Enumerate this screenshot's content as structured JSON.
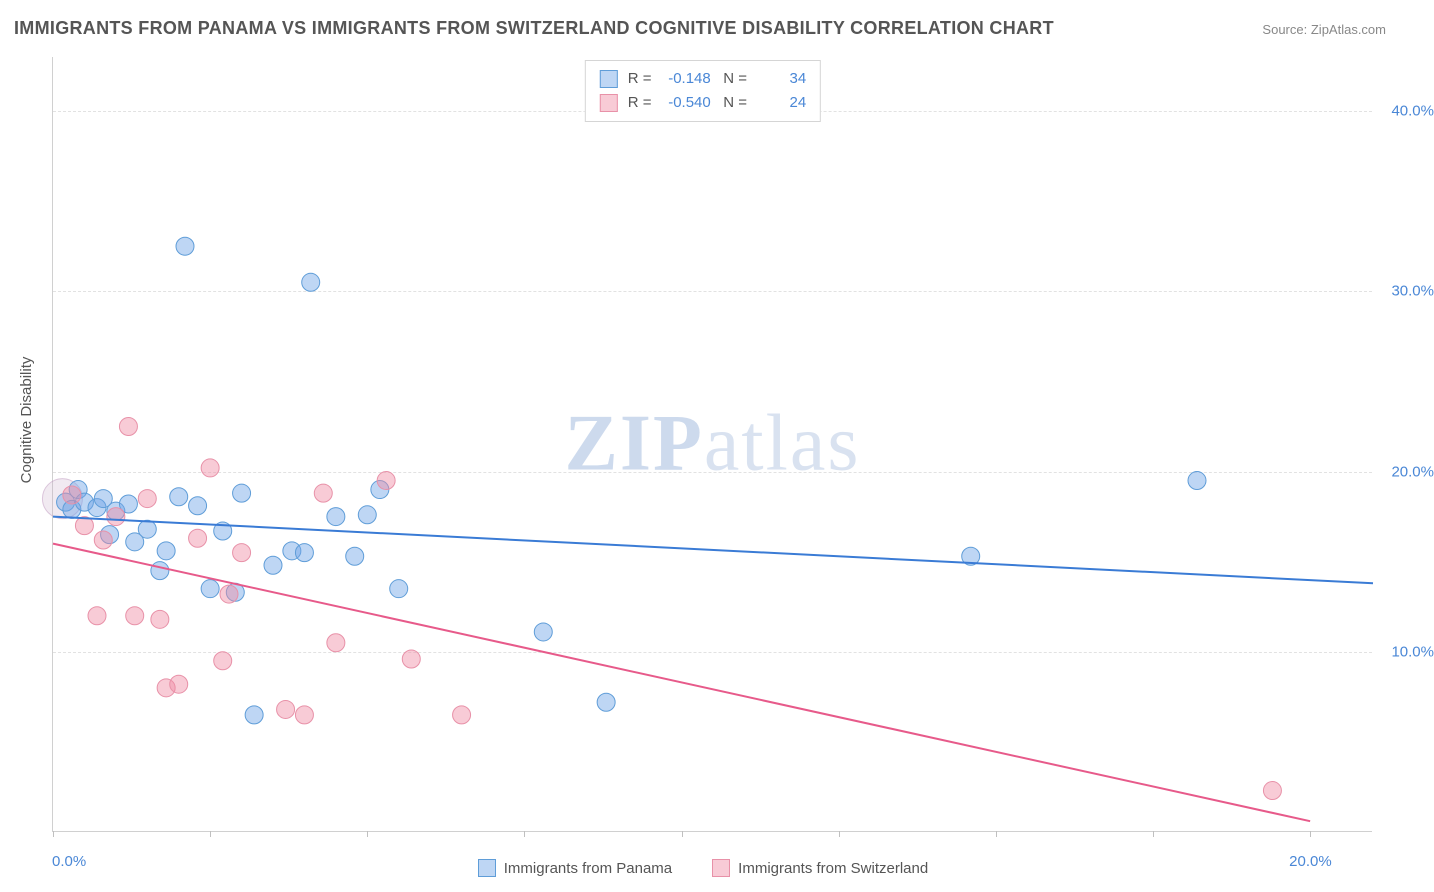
{
  "title": "IMMIGRANTS FROM PANAMA VS IMMIGRANTS FROM SWITZERLAND COGNITIVE DISABILITY CORRELATION CHART",
  "source_label": "Source:",
  "source_value": "ZipAtlas.com",
  "watermark": {
    "part1": "ZIP",
    "part2": "atlas"
  },
  "ylabel": "Cognitive Disability",
  "chart": {
    "type": "scatter",
    "background_color": "#ffffff",
    "grid_color": "#e2e2e2",
    "axis_color": "#d0d0d0",
    "tick_label_color": "#4a87d6",
    "label_color": "#555555",
    "xlim": [
      0,
      21
    ],
    "ylim": [
      0,
      43
    ],
    "y_ticks": [
      10,
      20,
      30,
      40
    ],
    "y_tick_labels": [
      "10.0%",
      "20.0%",
      "30.0%",
      "40.0%"
    ],
    "x_ticks": [
      0,
      2.5,
      5,
      7.5,
      10,
      12.5,
      15,
      17.5,
      20
    ],
    "x_tick_labels": {
      "0": "0.0%",
      "20": "20.0%"
    },
    "series": [
      {
        "name": "Immigrants from Panama",
        "marker_fill": "rgba(110,165,230,0.45)",
        "marker_stroke": "#5f9dd8",
        "line_color": "#3a7bd5",
        "line_width": 2,
        "marker_radius": 9,
        "R": "-0.148",
        "N": "34",
        "trend": {
          "x1": 0,
          "y1": 17.5,
          "x2": 21,
          "y2": 13.8
        },
        "points": [
          [
            0.2,
            18.3
          ],
          [
            0.3,
            17.9
          ],
          [
            0.4,
            19.0
          ],
          [
            0.5,
            18.3
          ],
          [
            0.7,
            18.0
          ],
          [
            0.8,
            18.5
          ],
          [
            0.9,
            16.5
          ],
          [
            1.0,
            17.8
          ],
          [
            1.2,
            18.2
          ],
          [
            1.3,
            16.1
          ],
          [
            1.5,
            16.8
          ],
          [
            1.7,
            14.5
          ],
          [
            1.8,
            15.6
          ],
          [
            2.0,
            18.6
          ],
          [
            2.1,
            32.5
          ],
          [
            2.3,
            18.1
          ],
          [
            2.5,
            13.5
          ],
          [
            2.7,
            16.7
          ],
          [
            2.9,
            13.3
          ],
          [
            3.0,
            18.8
          ],
          [
            3.2,
            6.5
          ],
          [
            3.5,
            14.8
          ],
          [
            3.8,
            15.6
          ],
          [
            4.0,
            15.5
          ],
          [
            4.1,
            30.5
          ],
          [
            4.5,
            17.5
          ],
          [
            4.8,
            15.3
          ],
          [
            5.0,
            17.6
          ],
          [
            5.2,
            19.0
          ],
          [
            5.5,
            13.5
          ],
          [
            7.8,
            11.1
          ],
          [
            8.8,
            7.2
          ],
          [
            14.6,
            15.3
          ],
          [
            18.2,
            19.5
          ]
        ]
      },
      {
        "name": "Immigrants from Switzerland",
        "marker_fill": "rgba(240,140,165,0.45)",
        "marker_stroke": "#e891a8",
        "line_color": "#e75a8a",
        "line_width": 2,
        "marker_radius": 9,
        "R": "-0.540",
        "N": "24",
        "trend": {
          "x1": 0,
          "y1": 16.0,
          "x2": 20,
          "y2": 0.6
        },
        "points": [
          [
            0.3,
            18.7
          ],
          [
            0.5,
            17.0
          ],
          [
            0.7,
            12.0
          ],
          [
            0.8,
            16.2
          ],
          [
            1.0,
            17.5
          ],
          [
            1.2,
            22.5
          ],
          [
            1.3,
            12.0
          ],
          [
            1.5,
            18.5
          ],
          [
            1.7,
            11.8
          ],
          [
            1.8,
            8.0
          ],
          [
            2.0,
            8.2
          ],
          [
            2.3,
            16.3
          ],
          [
            2.5,
            20.2
          ],
          [
            2.7,
            9.5
          ],
          [
            2.8,
            13.2
          ],
          [
            3.0,
            15.5
          ],
          [
            3.7,
            6.8
          ],
          [
            4.0,
            6.5
          ],
          [
            4.3,
            18.8
          ],
          [
            4.5,
            10.5
          ],
          [
            5.3,
            19.5
          ],
          [
            5.7,
            9.6
          ],
          [
            6.5,
            6.5
          ],
          [
            19.4,
            2.3
          ]
        ]
      }
    ],
    "legend_labels": {
      "R": "R =",
      "N": "N ="
    }
  }
}
